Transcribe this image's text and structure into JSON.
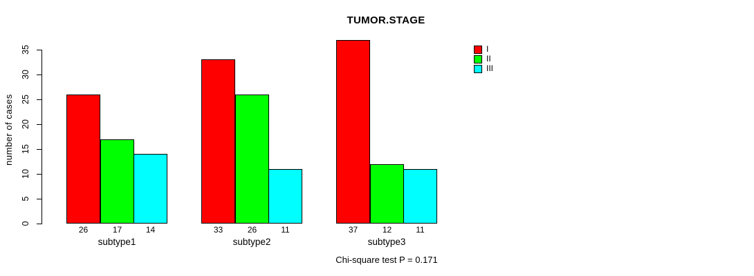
{
  "chart_data": {
    "type": "bar",
    "title": "TUMOR.STAGE",
    "xlabel": "",
    "ylabel": "number of cases",
    "categories": [
      "subtype1",
      "subtype2",
      "subtype3"
    ],
    "series": [
      {
        "name": "I",
        "color": "#ff0000",
        "values": [
          26,
          33,
          37
        ]
      },
      {
        "name": "II",
        "color": "#00ff00",
        "values": [
          17,
          26,
          12
        ]
      },
      {
        "name": "III",
        "color": "#00ffff",
        "values": [
          14,
          11,
          11
        ]
      }
    ],
    "yticks": [
      0,
      5,
      10,
      15,
      20,
      25,
      30,
      35
    ],
    "ylim": [
      0,
      37
    ],
    "grid": false,
    "legend_position": "right",
    "bar_value_labels_shown": true,
    "annotation": "Chi-square test P = 0.171"
  },
  "colors": {
    "background": "#ffffff",
    "axis": "#000000",
    "text": "#000000",
    "bar_border": "#000000"
  }
}
